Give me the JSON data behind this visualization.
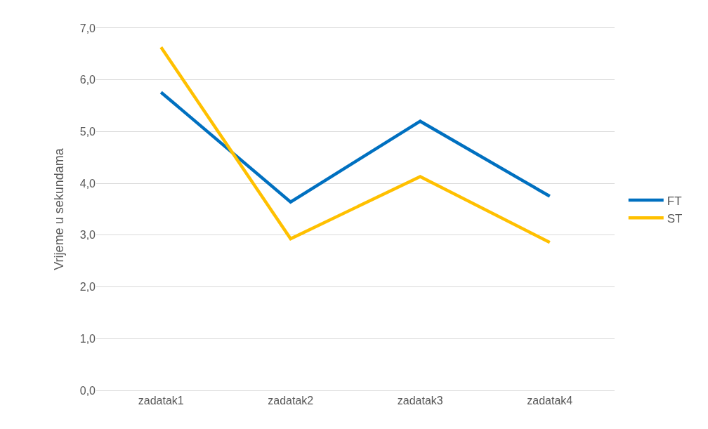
{
  "chart_data": {
    "type": "line",
    "categories": [
      "zadatak1",
      "zadatak2",
      "zadatak3",
      "zadatak4"
    ],
    "ylabel": "Vrijeme u sekundama",
    "series": [
      {
        "name": "FT",
        "color": "#0070c0",
        "values": [
          5.76,
          3.64,
          5.2,
          3.75
        ]
      },
      {
        "name": "ST",
        "color": "#ffc000",
        "values": [
          6.63,
          2.93,
          4.13,
          2.86
        ]
      }
    ],
    "ylim": [
      0,
      7
    ],
    "yticks": [
      {
        "value": 0,
        "label": "0,0"
      },
      {
        "value": 1,
        "label": "1,0"
      },
      {
        "value": 2,
        "label": "2,0"
      },
      {
        "value": 3,
        "label": "3,0"
      },
      {
        "value": 4,
        "label": "4,0"
      },
      {
        "value": 5,
        "label": "5,0"
      },
      {
        "value": 6,
        "label": "6,0"
      },
      {
        "value": 7,
        "label": "7,0"
      }
    ],
    "grid": "y",
    "legend": "right",
    "marker": "none",
    "line_style": "solid"
  }
}
